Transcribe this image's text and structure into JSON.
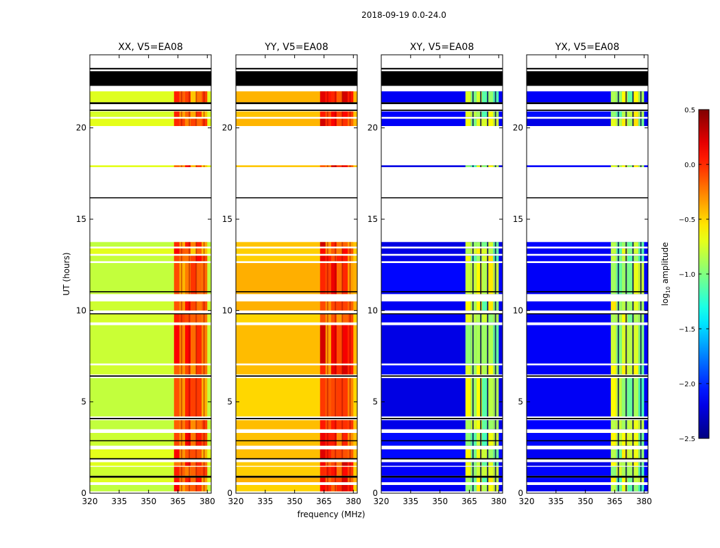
{
  "chart_data": {
    "type": "heatmap",
    "suptitle": "2018-09-19 0.0-24.0",
    "xlabel": "frequency (MHz)",
    "ylabel": "UT (hours)",
    "xlim": [
      320,
      382
    ],
    "ylim": [
      0,
      24
    ],
    "xticks": [
      320,
      335,
      350,
      365,
      380
    ],
    "yticks": [
      0,
      5,
      10,
      15,
      20
    ],
    "panels": [
      {
        "title": "XX, V5=EA08",
        "base_level": -0.75,
        "band_level": -0.15
      },
      {
        "title": "YY, V5=EA08",
        "base_level": -0.45,
        "band_level": -0.05
      },
      {
        "title": "XY, V5=EA08",
        "base_level": -2.15,
        "band_level": -0.85
      },
      {
        "title": "YX, V5=EA08",
        "base_level": -2.15,
        "band_level": -0.85
      }
    ],
    "rfi_band_mhz": [
      363,
      380
    ],
    "data_rows_ut": [
      [
        0.1,
        0.45
      ],
      [
        0.6,
        0.85
      ],
      [
        0.95,
        1.45
      ],
      [
        1.5,
        1.7
      ],
      [
        1.9,
        2.4
      ],
      [
        2.6,
        3.3
      ],
      [
        3.5,
        4.0
      ],
      [
        4.2,
        6.3
      ],
      [
        6.5,
        7.0
      ],
      [
        7.1,
        9.2
      ],
      [
        9.35,
        9.8
      ],
      [
        10.0,
        10.5
      ],
      [
        10.9,
        12.6
      ],
      [
        12.7,
        13.0
      ],
      [
        13.1,
        13.4
      ],
      [
        13.5,
        13.75
      ],
      [
        17.85,
        17.95
      ],
      [
        20.1,
        20.5
      ],
      [
        20.6,
        20.9
      ],
      [
        21.4,
        22.0
      ]
    ],
    "flag_rows_ut": [
      [
        0.85,
        0.95
      ],
      [
        1.85,
        1.92
      ],
      [
        2.85,
        2.9
      ],
      [
        4.05,
        4.12
      ],
      [
        6.38,
        6.45
      ],
      [
        9.8,
        9.85
      ],
      [
        11.0,
        11.06
      ],
      [
        16.15,
        16.2
      ],
      [
        21.3,
        21.4
      ],
      [
        20.93,
        21.0
      ],
      [
        22.3,
        23.1
      ],
      [
        23.2,
        23.28
      ]
    ],
    "colorbar": {
      "label": "log10 amplitude",
      "label_main": "log",
      "label_sub": "10",
      "label_rest": " amplitude",
      "min": -2.5,
      "max": 0.5,
      "ticks": [
        "0.5",
        "0.0",
        "−0.5",
        "−1.0",
        "−1.5",
        "−2.0",
        "−2.5"
      ],
      "tick_values": [
        0.5,
        0.0,
        -0.5,
        -1.0,
        -1.5,
        -2.0,
        -2.5
      ]
    }
  }
}
